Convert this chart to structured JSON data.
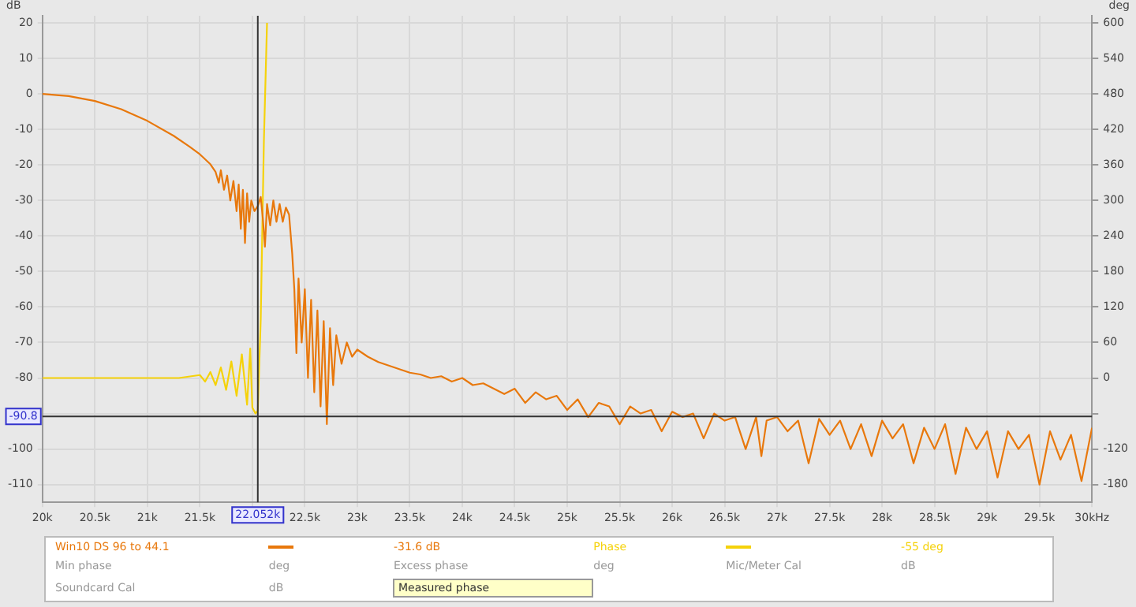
{
  "chart_data": {
    "type": "line",
    "ylabel": "dB",
    "y2label": "deg",
    "xlim": [
      20,
      30
    ],
    "xticks": [
      {
        "value": 20,
        "label": "20k"
      },
      {
        "value": 20.5,
        "label": "20.5k"
      },
      {
        "value": 21,
        "label": "21k"
      },
      {
        "value": 21.5,
        "label": "21.5k"
      },
      {
        "value": 22,
        "label": null
      },
      {
        "value": 22.5,
        "label": "22.5k"
      },
      {
        "value": 23,
        "label": "23k"
      },
      {
        "value": 23.5,
        "label": "23.5k"
      },
      {
        "value": 24,
        "label": "24k"
      },
      {
        "value": 24.5,
        "label": "24.5k"
      },
      {
        "value": 25,
        "label": "25k"
      },
      {
        "value": 25.5,
        "label": "25.5k"
      },
      {
        "value": 26,
        "label": "26k"
      },
      {
        "value": 26.5,
        "label": "26.5k"
      },
      {
        "value": 27,
        "label": "27k"
      },
      {
        "value": 27.5,
        "label": "27.5k"
      },
      {
        "value": 28,
        "label": "28k"
      },
      {
        "value": 28.5,
        "label": "28.5k"
      },
      {
        "value": 29,
        "label": "29k"
      },
      {
        "value": 29.5,
        "label": "29.5k"
      },
      {
        "value": 30,
        "label": "30kHz"
      }
    ],
    "ylim": [
      -115,
      22
    ],
    "yticks": [
      -110,
      -100,
      {
        "value": -90,
        "label": null
      },
      -80,
      -70,
      -60,
      -50,
      -40,
      -30,
      -20,
      -10,
      0,
      10,
      20
    ],
    "y2lim": [
      -210,
      612
    ],
    "y2ticks": [
      -180,
      -120,
      {
        "value": -60,
        "label": null
      },
      0,
      60,
      120,
      180,
      240,
      300,
      360,
      420,
      480,
      540,
      600
    ],
    "grid": true,
    "legend": "bottom",
    "marker": "none",
    "line_style": "solid",
    "ref_lines": [
      {
        "axis": "x",
        "value": 22.052,
        "label": "22.052k"
      },
      {
        "axis": "y",
        "value": -90.8,
        "label": "-90.8"
      }
    ],
    "annotations": [
      "-31.6 dB",
      "-55 deg",
      "Min phase",
      "deg",
      "Excess phase",
      "deg",
      "Mic/Meter Cal",
      "dB",
      "Soundcard Cal",
      "dB",
      "Measured phase"
    ],
    "series": [
      {
        "name": "Win10 DS 96 to 44.1",
        "color": "#e8780c",
        "x": [
          20,
          20.25,
          20.5,
          20.75,
          21,
          21.25,
          21.4,
          21.5,
          21.6,
          21.65,
          21.68,
          21.7,
          21.73,
          21.76,
          21.79,
          21.82,
          21.85,
          21.87,
          21.89,
          21.91,
          21.93,
          21.95,
          21.97,
          21.99,
          22.02,
          22.052,
          22.08,
          22.1,
          22.12,
          22.14,
          22.17,
          22.2,
          22.23,
          22.26,
          22.29,
          22.32,
          22.35,
          22.38,
          22.4,
          22.42,
          22.44,
          22.47,
          22.5,
          22.53,
          22.56,
          22.59,
          22.62,
          22.65,
          22.68,
          22.71,
          22.74,
          22.77,
          22.8,
          22.85,
          22.9,
          22.95,
          23,
          23.1,
          23.2,
          23.3,
          23.4,
          23.5,
          23.6,
          23.7,
          23.8,
          23.9,
          24,
          24.1,
          24.2,
          24.3,
          24.4,
          24.5,
          24.6,
          24.7,
          24.8,
          24.9,
          25,
          25.1,
          25.2,
          25.3,
          25.4,
          25.5,
          25.6,
          25.7,
          25.8,
          25.9,
          26,
          26.1,
          26.2,
          26.3,
          26.4,
          26.5,
          26.6,
          26.7,
          26.8,
          26.85,
          26.9,
          27,
          27.1,
          27.2,
          27.3,
          27.4,
          27.5,
          27.6,
          27.7,
          27.8,
          27.9,
          28,
          28.1,
          28.2,
          28.3,
          28.4,
          28.5,
          28.6,
          28.7,
          28.8,
          28.9,
          29,
          29.1,
          29.2,
          29.3,
          29.4,
          29.5,
          29.6,
          29.7,
          29.8,
          29.9,
          30
        ],
        "values": [
          0,
          -0.6,
          -2,
          -4.3,
          -7.6,
          -11.8,
          -14.8,
          -17,
          -19.8,
          -22,
          -25,
          -21.5,
          -27,
          -23,
          -30,
          -24.5,
          -33,
          -25.5,
          -38,
          -27,
          -42,
          -28,
          -36,
          -30,
          -33,
          -31.6,
          -29,
          -35,
          -43,
          -31,
          -37,
          -30,
          -36,
          -31,
          -36,
          -32,
          -34,
          -45,
          -55,
          -73,
          -52,
          -70,
          -55,
          -80,
          -58,
          -84,
          -61,
          -88,
          -64,
          -93,
          -66,
          -82,
          -68,
          -76,
          -70,
          -74,
          -72,
          -74,
          -75.5,
          -76.5,
          -77.5,
          -78.5,
          -79,
          -80,
          -79.5,
          -81,
          -80,
          -82,
          -81.5,
          -83,
          -84.5,
          -83,
          -87,
          -84,
          -86,
          -85,
          -89,
          -86,
          -91,
          -87,
          -88,
          -93,
          -88,
          -90,
          -89,
          -95,
          -89.5,
          -91,
          -90,
          -97,
          -90,
          -92,
          -91,
          -100,
          -91,
          -102,
          -92,
          -91,
          -95,
          -92,
          -104,
          -91.5,
          -96,
          -92,
          -100,
          -93,
          -102,
          -92,
          -97,
          -93,
          -104,
          -94,
          -100,
          -93,
          -107,
          -94,
          -100,
          -95,
          -108,
          -95,
          -100,
          -96,
          -110,
          -95,
          -103,
          -96,
          -109,
          -94
        ]
      },
      {
        "name": "Phase",
        "color": "#f5d20a",
        "axis": "y2",
        "x": [
          20,
          21,
          21.3,
          21.5,
          21.55,
          21.6,
          21.65,
          21.7,
          21.75,
          21.8,
          21.85,
          21.9,
          21.95,
          21.98,
          22,
          22.03,
          22.052,
          22.08,
          22.11,
          22.14
        ],
        "values": [
          0,
          0,
          0,
          5,
          -6,
          10,
          -12,
          18,
          -20,
          28,
          -30,
          40,
          -45,
          50,
          -50,
          -60,
          -55,
          100,
          400,
          600
        ]
      }
    ]
  }
}
